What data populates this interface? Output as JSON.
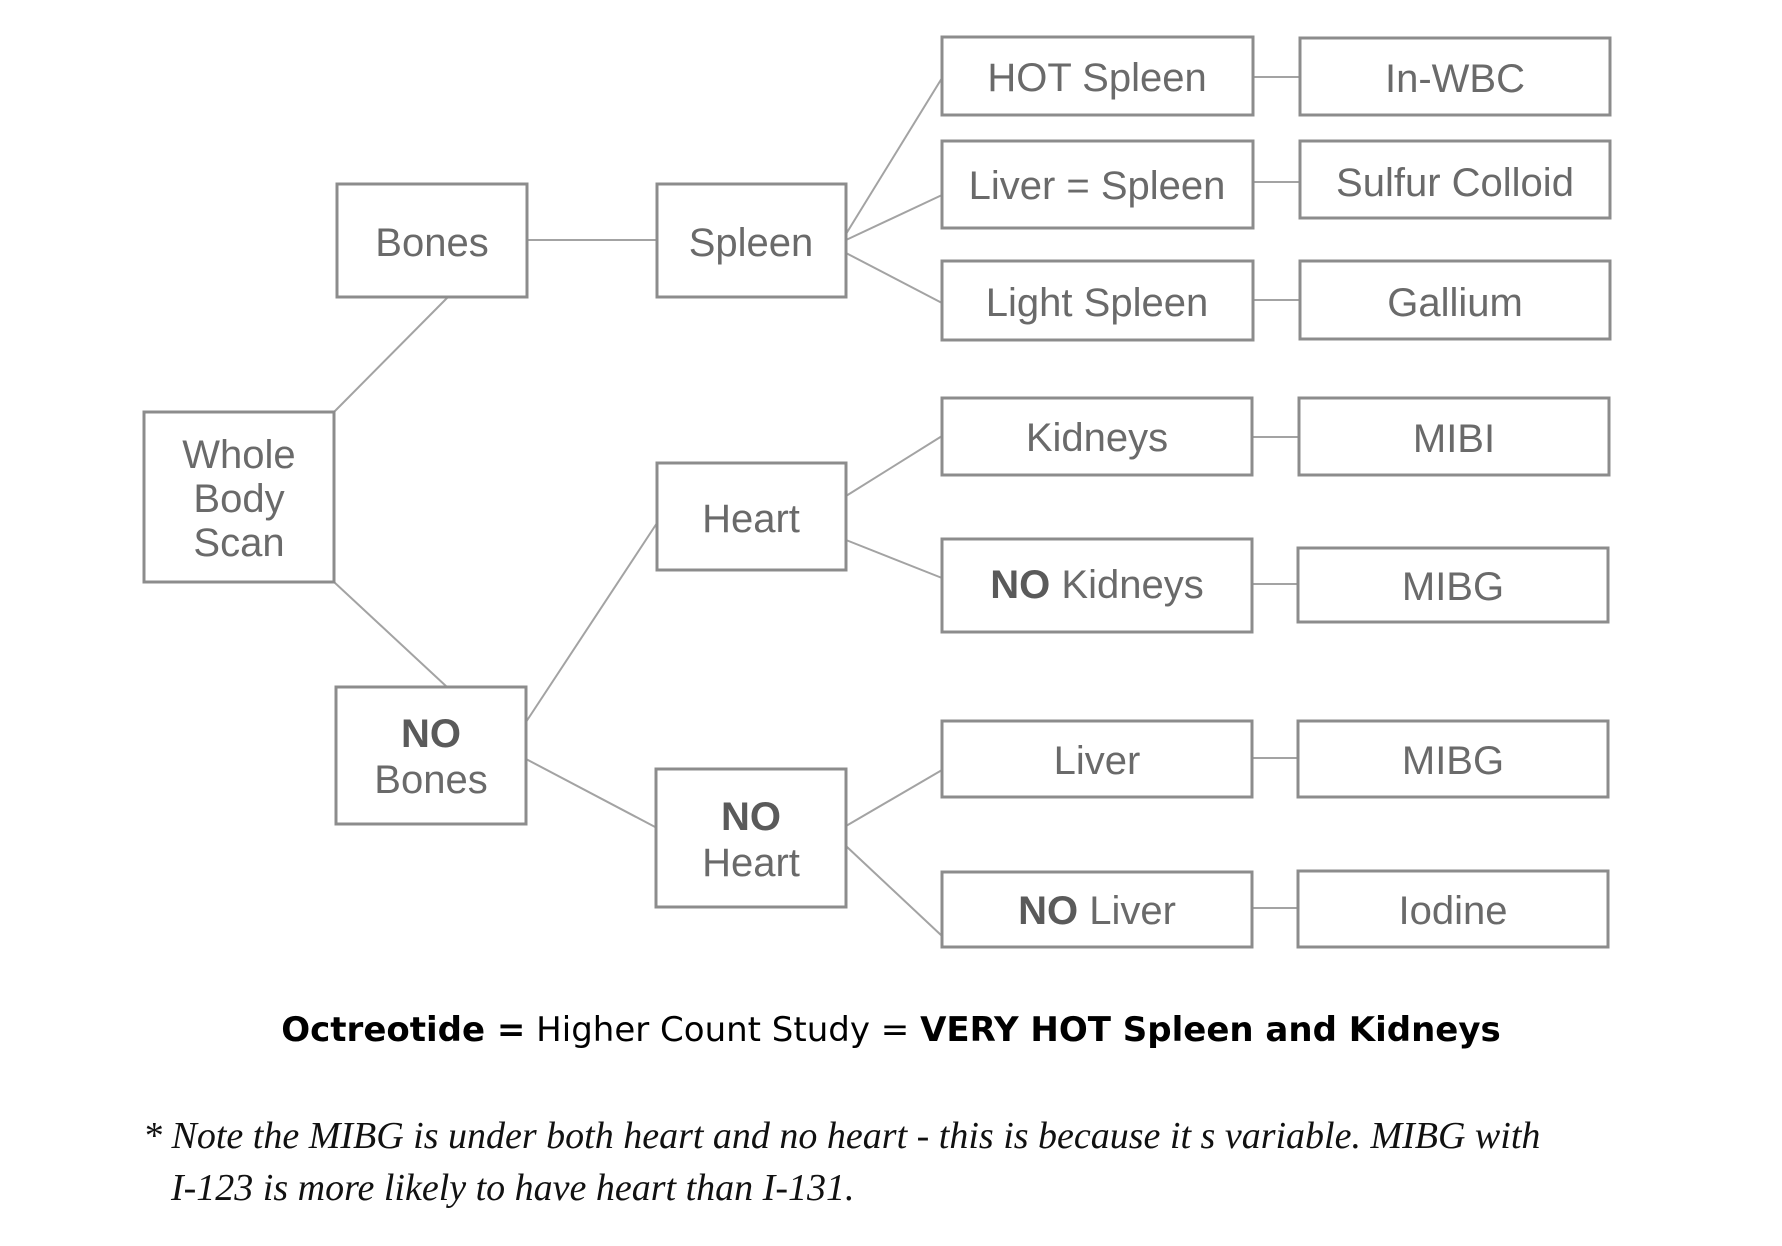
{
  "nodes": {
    "whole_body_scan": [
      "Whole",
      "Body",
      "Scan"
    ],
    "bones": "Bones",
    "no_bones": {
      "no": "NO",
      "rest": "Bones"
    },
    "spleen": "Spleen",
    "heart": "Heart",
    "no_heart": {
      "no": "NO",
      "rest": "Heart"
    },
    "hot_spleen": "HOT Spleen",
    "liver_equals_spleen": "Liver = Spleen",
    "light_spleen": "Light Spleen",
    "kidneys": "Kidneys",
    "no_kidneys": {
      "no": "NO",
      "rest": " Kidneys"
    },
    "liver": "Liver",
    "no_liver": {
      "no": "NO",
      "rest": " Liver"
    },
    "in_wbc": "In-WBC",
    "sulfur_colloid": "Sulfur Colloid",
    "gallium": "Gallium",
    "mibi": "MIBI",
    "mibg_1": "MIBG",
    "mibg_2": "MIBG",
    "iodine": "Iodine"
  },
  "octreotide": {
    "part1": "Octreotide =",
    "part2": " Higher Count Study = ",
    "part3": "VERY HOT Spleen and Kidneys"
  },
  "note": {
    "line1": "* Note the MIBG is under both heart and no heart - this is because it s variable. MIBG with",
    "line2": "I-123 is more likely to have heart than I-131."
  }
}
